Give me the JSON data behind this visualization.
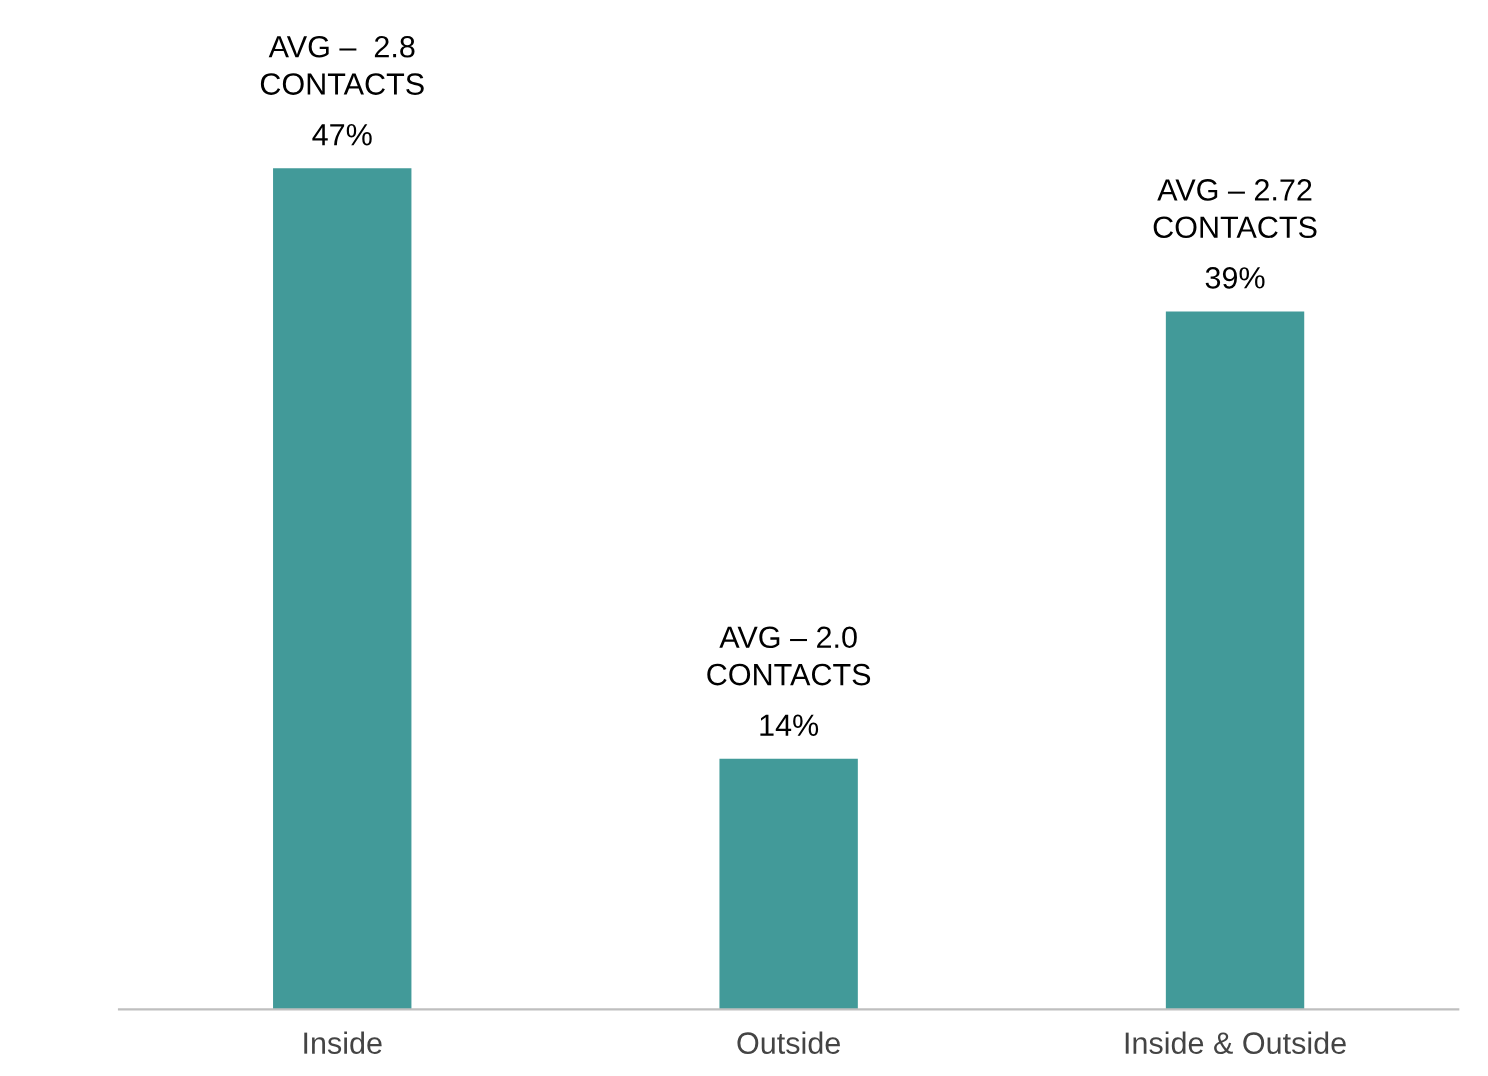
{
  "chart_data": {
    "type": "bar",
    "categories": [
      "Inside",
      "Outside",
      "Inside & Outside"
    ],
    "values": [
      47,
      14,
      39
    ],
    "color": "#429a99",
    "value_labels": [
      "47%",
      "14%",
      "39%"
    ],
    "annotations": [
      {
        "text": "AVG –  2.8\nCONTACTS",
        "x": "Inside",
        "y": 47
      },
      {
        "text": "AVG – 2.0\nCONTACTS",
        "x": "Outside",
        "y": 14
      },
      {
        "text": "AVG – 2.72\nCONTACTS",
        "x": "Inside & Outside",
        "y": 39
      }
    ],
    "grid": false,
    "legend": false
  }
}
